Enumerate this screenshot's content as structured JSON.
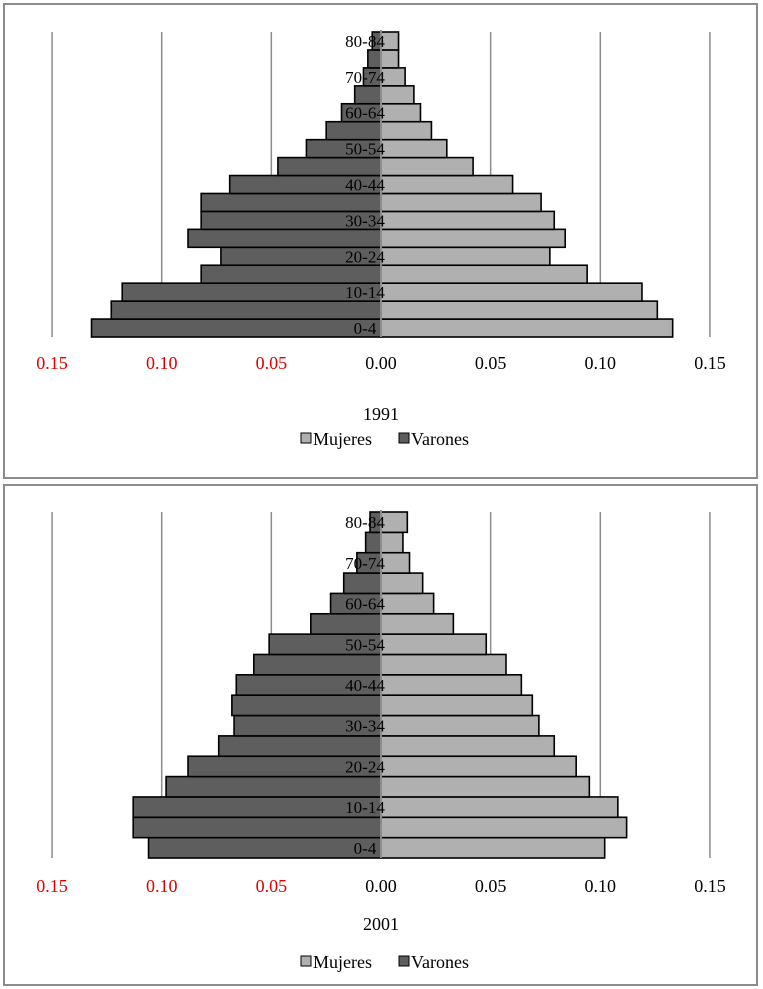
{
  "colors": {
    "women": "#b0b0b0",
    "men": "#5e5e5e",
    "negative_tick": "#e00000",
    "positive_tick": "#000000",
    "grid": "#8c8c8c"
  },
  "chart_data": [
    {
      "type": "bar",
      "orientation": "horizontal",
      "subtype": "population-pyramid",
      "title": "1991",
      "xlim": [
        -0.15,
        0.15
      ],
      "x_ticks": [
        "0.15",
        "0.10",
        "0.05",
        "0.00",
        "0.05",
        "0.10",
        "0.15"
      ],
      "age_labels": [
        "80-84",
        "70-74",
        "60-64",
        "50-54",
        "40-44",
        "30-34",
        "20-24",
        "10-14",
        "0-4"
      ],
      "legend": [
        "Mujeres",
        "Varones"
      ],
      "grid": true,
      "legend_position": "bottom",
      "series": [
        {
          "name": "Mujeres",
          "values": [
            0.133,
            0.126,
            0.119,
            0.094,
            0.077,
            0.084,
            0.079,
            0.073,
            0.06,
            0.042,
            0.03,
            0.023,
            0.018,
            0.015,
            0.011,
            0.008,
            0.008
          ]
        },
        {
          "name": "Varones",
          "values": [
            0.132,
            0.123,
            0.118,
            0.082,
            0.073,
            0.088,
            0.082,
            0.082,
            0.069,
            0.047,
            0.034,
            0.025,
            0.018,
            0.012,
            0.008,
            0.006,
            0.004
          ]
        }
      ]
    },
    {
      "type": "bar",
      "orientation": "horizontal",
      "subtype": "population-pyramid",
      "title": "2001",
      "xlim": [
        -0.15,
        0.15
      ],
      "x_ticks": [
        "0.15",
        "0.10",
        "0.05",
        "0.00",
        "0.05",
        "0.10",
        "0.15"
      ],
      "age_labels": [
        "80-84",
        "70-74",
        "60-64",
        "50-54",
        "40-44",
        "30-34",
        "20-24",
        "10-14",
        "0-4"
      ],
      "legend": [
        "Mujeres",
        "Varones"
      ],
      "grid": true,
      "legend_position": "bottom",
      "series": [
        {
          "name": "Mujeres",
          "values": [
            0.102,
            0.112,
            0.108,
            0.095,
            0.089,
            0.079,
            0.072,
            0.069,
            0.064,
            0.057,
            0.048,
            0.033,
            0.024,
            0.019,
            0.013,
            0.01,
            0.012
          ]
        },
        {
          "name": "Varones",
          "values": [
            0.106,
            0.113,
            0.113,
            0.098,
            0.088,
            0.074,
            0.067,
            0.068,
            0.066,
            0.058,
            0.051,
            0.032,
            0.023,
            0.017,
            0.011,
            0.007,
            0.005
          ]
        }
      ]
    }
  ]
}
